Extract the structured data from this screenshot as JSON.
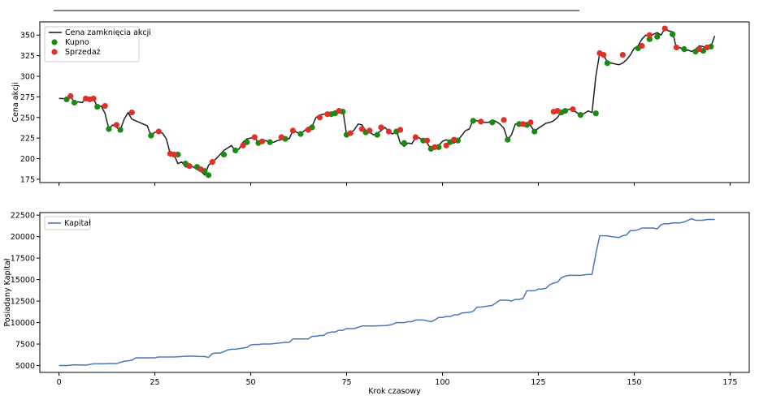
{
  "colors": {
    "price": "#222222",
    "buy": "#1a8a12",
    "sell": "#e0302a",
    "capital": "#4a77c0",
    "axes": "#000000"
  },
  "chart_data": [
    {
      "type": "line",
      "xlim": [
        -5,
        180
      ],
      "ylim": [
        171,
        366
      ],
      "yticks": [
        175,
        200,
        225,
        250,
        275,
        300,
        325,
        350
      ],
      "xticks": [
        0,
        25,
        50,
        75,
        100,
        125,
        150,
        175
      ],
      "xlabel": "",
      "ylabel": "Cena akcji",
      "legend": {
        "position": "top-left",
        "entries": [
          "Cena zamknięcia akcji",
          "Kupno",
          "Sprzedaż"
        ]
      },
      "series": [
        {
          "name": "Cena zamknięcia akcji",
          "x": [
            0,
            1,
            2,
            3,
            4,
            5,
            6,
            7,
            8,
            9,
            10,
            11,
            12,
            13,
            14,
            15,
            16,
            17,
            18,
            19,
            20,
            21,
            22,
            23,
            24,
            25,
            26,
            27,
            28,
            29,
            30,
            31,
            32,
            33,
            34,
            35,
            36,
            37,
            38,
            39,
            40,
            41,
            42,
            43,
            44,
            45,
            46,
            47,
            48,
            49,
            50,
            51,
            52,
            53,
            54,
            55,
            56,
            57,
            58,
            59,
            60,
            61,
            62,
            63,
            64,
            65,
            66,
            67,
            68,
            69,
            70,
            71,
            72,
            73,
            74,
            75,
            76,
            77,
            78,
            79,
            80,
            81,
            82,
            83,
            84,
            85,
            86,
            87,
            88,
            89,
            90,
            91,
            92,
            93,
            94,
            95,
            96,
            97,
            98,
            99,
            100,
            101,
            102,
            103,
            104,
            105,
            106,
            107,
            108,
            109,
            110,
            111,
            112,
            113,
            114,
            115,
            116,
            117,
            118,
            119,
            120,
            121,
            122,
            123,
            124,
            125,
            126,
            127,
            128,
            129,
            130,
            131,
            132,
            133,
            134,
            135,
            136,
            137,
            138,
            139,
            140,
            141,
            142,
            143,
            144,
            145,
            146,
            147,
            148,
            149,
            150,
            151,
            152,
            153,
            154,
            155,
            156,
            157,
            158,
            159,
            160,
            161,
            162,
            163,
            164,
            165,
            166,
            167,
            168,
            169,
            170,
            171
          ],
          "y": [
            273,
            273,
            272,
            276,
            268,
            269,
            268,
            273,
            272,
            273,
            263,
            264,
            255,
            236,
            241,
            238,
            235,
            248,
            256,
            248,
            246,
            244,
            242,
            240,
            228,
            232,
            233,
            231,
            224,
            206,
            205,
            194,
            196,
            190,
            191,
            190,
            187,
            185,
            180,
            192,
            196,
            200,
            205,
            210,
            213,
            216,
            209,
            212,
            220,
            224,
            225,
            226,
            219,
            221,
            222,
            219,
            220,
            222,
            223,
            226,
            224,
            234,
            232,
            230,
            234,
            238,
            239,
            250,
            253,
            254,
            255,
            254,
            258,
            257,
            260,
            229,
            231,
            235,
            242,
            241,
            234,
            232,
            229,
            231,
            234,
            238,
            233,
            230,
            234,
            219,
            215,
            219,
            218,
            226,
            225,
            222,
            219,
            212,
            214,
            216,
            221,
            223,
            220,
            219,
            222,
            228,
            234,
            236,
            247,
            246,
            245,
            244,
            244,
            247,
            245,
            242,
            237,
            223,
            229,
            242,
            242,
            241,
            244,
            240,
            233,
            237,
            240,
            243,
            244,
            246,
            250,
            257,
            258,
            260,
            259,
            256,
            253,
            255,
            258,
            256,
            300,
            328,
            326,
            317,
            316,
            315,
            314,
            316,
            320,
            326,
            334,
            337,
            345,
            350,
            348,
            351,
            353,
            350,
            358,
            355,
            354,
            334,
            335,
            330,
            332,
            330,
            333,
            337,
            336,
            333,
            336,
            349
          ]
        },
        {
          "name": "Kupno",
          "x": [
            2,
            4,
            10,
            13,
            16,
            24,
            31,
            33,
            36,
            38,
            39,
            43,
            46,
            49,
            52,
            55,
            59,
            63,
            66,
            71,
            72,
            74,
            75,
            80,
            83,
            88,
            90,
            95,
            97,
            99,
            102,
            104,
            108,
            113,
            117,
            120,
            122,
            124,
            131,
            132,
            136,
            140,
            143,
            151,
            154,
            156,
            160,
            163,
            166,
            168,
            170
          ],
          "y": [
            272,
            268,
            263,
            236,
            235,
            228,
            205,
            194,
            190,
            185,
            180,
            205,
            210,
            220,
            219,
            220,
            224,
            230,
            238,
            254,
            255,
            257,
            229,
            232,
            229,
            233,
            219,
            222,
            212,
            214,
            220,
            222,
            246,
            244,
            223,
            242,
            241,
            233,
            256,
            258,
            253,
            255,
            316,
            334,
            345,
            348,
            351,
            333,
            330,
            331,
            336
          ]
        },
        {
          "name": "Sprzedaż",
          "x": [
            3,
            7,
            8,
            9,
            12,
            15,
            19,
            26,
            29,
            30,
            34,
            37,
            40,
            48,
            51,
            53,
            58,
            61,
            65,
            68,
            70,
            73,
            76,
            79,
            81,
            84,
            86,
            89,
            93,
            96,
            98,
            101,
            103,
            110,
            116,
            121,
            123,
            129,
            130,
            134,
            141,
            142,
            147,
            152,
            154,
            158,
            161,
            167,
            169
          ],
          "y": [
            276,
            273,
            272,
            273,
            264,
            241,
            256,
            233,
            206,
            205,
            191,
            187,
            196,
            216,
            226,
            221,
            226,
            234,
            235,
            250,
            254,
            258,
            231,
            236,
            234,
            238,
            233,
            235,
            226,
            222,
            214,
            216,
            223,
            245,
            247,
            242,
            244,
            257,
            258,
            260,
            328,
            326,
            326,
            337,
            350,
            358,
            335,
            333,
            335
          ]
        }
      ]
    },
    {
      "type": "line",
      "xlim": [
        -5,
        180
      ],
      "ylim": [
        4200,
        22800
      ],
      "yticks": [
        5000,
        7500,
        10000,
        12500,
        15000,
        17500,
        20000,
        22500
      ],
      "xticks": [
        0,
        25,
        50,
        75,
        100,
        125,
        150,
        175
      ],
      "xlabel": "Krok czasowy",
      "ylabel": "Posiadany Kapitał",
      "legend": {
        "position": "top-left",
        "entries": [
          "Kapitał"
        ]
      },
      "series": [
        {
          "name": "Kapitał",
          "x": [
            0,
            2,
            4,
            7,
            9,
            10,
            12,
            13,
            15,
            17,
            19,
            20,
            21,
            25,
            26,
            30,
            34,
            37,
            38,
            39,
            40,
            41,
            42,
            44,
            45,
            46,
            49,
            50,
            51,
            52,
            53,
            55,
            57,
            58,
            59,
            60,
            61,
            63,
            64,
            65,
            66,
            67,
            68,
            69,
            70,
            71,
            72,
            73,
            74,
            75,
            77,
            79,
            82,
            85,
            86,
            87,
            88,
            90,
            91,
            92,
            93,
            95,
            97,
            98,
            99,
            100,
            101,
            102,
            103,
            104,
            105,
            107,
            108,
            109,
            110,
            113,
            115,
            117,
            118,
            119,
            120,
            121,
            122,
            124,
            125,
            126,
            127,
            128,
            129,
            130,
            131,
            132,
            133,
            135,
            136,
            138,
            139,
            140,
            141,
            142,
            143,
            144,
            146,
            147,
            148,
            149,
            150,
            151,
            152,
            153,
            154,
            155,
            156,
            157,
            158,
            159,
            160,
            161,
            162,
            163,
            164,
            165,
            166,
            167,
            168,
            169,
            170,
            171
          ],
          "y": [
            5000,
            5000,
            5080,
            5050,
            5200,
            5200,
            5210,
            5230,
            5230,
            5500,
            5600,
            5900,
            5900,
            5900,
            6000,
            6000,
            6100,
            6050,
            6050,
            5950,
            6400,
            6450,
            6450,
            6800,
            6900,
            6900,
            7100,
            7400,
            7450,
            7450,
            7500,
            7500,
            7600,
            7650,
            7700,
            7700,
            8100,
            8100,
            8100,
            8100,
            8400,
            8400,
            8500,
            8500,
            8800,
            8900,
            8900,
            9100,
            9100,
            9300,
            9300,
            9600,
            9600,
            9650,
            9700,
            9800,
            10000,
            10000,
            10100,
            10100,
            10300,
            10300,
            10100,
            10300,
            10600,
            10600,
            10700,
            10700,
            10900,
            10900,
            11100,
            11200,
            11300,
            11800,
            11800,
            12000,
            12600,
            12600,
            12500,
            12700,
            12700,
            12800,
            13700,
            13700,
            13900,
            13900,
            14000,
            14400,
            14600,
            14700,
            15200,
            15400,
            15500,
            15500,
            15500,
            15600,
            15600,
            18000,
            20100,
            20100,
            20100,
            20000,
            19900,
            20100,
            20200,
            20700,
            20700,
            20800,
            21000,
            21000,
            21000,
            21000,
            20900,
            21400,
            21500,
            21500,
            21600,
            21600,
            21600,
            21700,
            21900,
            22100,
            21900,
            21900,
            21900,
            22000,
            22000,
            22000
          ]
        }
      ]
    }
  ]
}
